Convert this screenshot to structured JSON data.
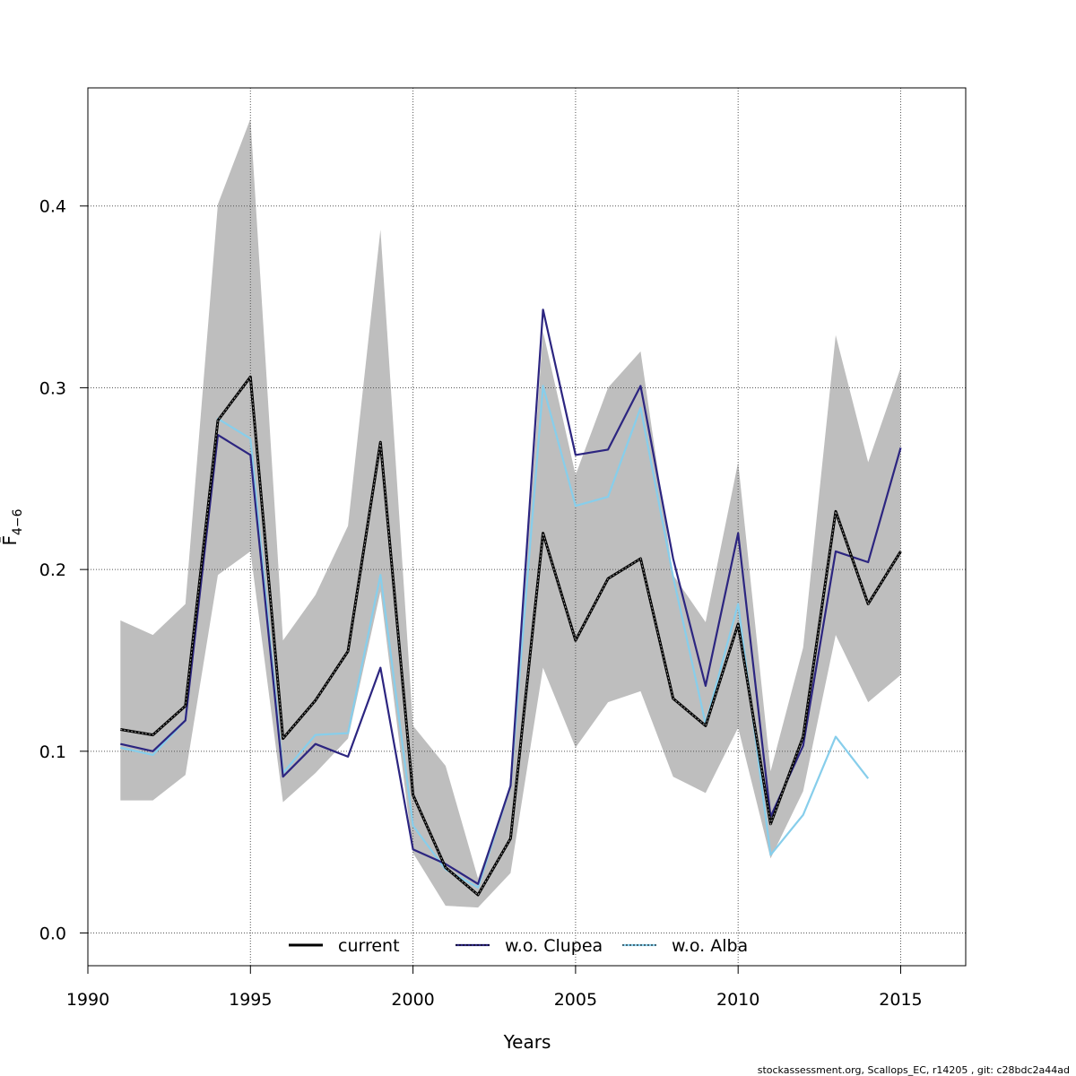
{
  "chart_data": {
    "type": "line",
    "title": "",
    "xlabel": "Years",
    "ylabel": "F̄",
    "ylabel_subscript": "4−6",
    "xlim": [
      1990,
      2017
    ],
    "ylim": [
      -0.018,
      0.465
    ],
    "x_ticks": [
      1990,
      1995,
      2000,
      2005,
      2010,
      2015
    ],
    "y_ticks": [
      0.0,
      0.1,
      0.2,
      0.3,
      0.4
    ],
    "y_tick_labels": [
      "0.0",
      "0.1",
      "0.2",
      "0.3",
      "0.4"
    ],
    "grid": true,
    "legend_position": "bottom",
    "x": [
      1991,
      1992,
      1993,
      1994,
      1995,
      1996,
      1997,
      1998,
      1999,
      2000,
      2001,
      2002,
      2003,
      2004,
      2005,
      2006,
      2007,
      2008,
      2009,
      2010,
      2011,
      2012,
      2013,
      2014,
      2015
    ],
    "band": {
      "color": "#bebebe",
      "lower": [
        0.073,
        0.073,
        0.087,
        0.197,
        0.21,
        0.072,
        0.088,
        0.107,
        0.188,
        0.044,
        0.015,
        0.014,
        0.033,
        0.146,
        0.102,
        0.127,
        0.133,
        0.086,
        0.077,
        0.113,
        0.041,
        0.078,
        0.164,
        0.127,
        0.142
      ],
      "upper": [
        0.172,
        0.164,
        0.181,
        0.401,
        0.448,
        0.161,
        0.186,
        0.224,
        0.387,
        0.114,
        0.092,
        0.03,
        0.08,
        0.331,
        0.252,
        0.3,
        0.32,
        0.197,
        0.171,
        0.259,
        0.089,
        0.157,
        0.329,
        0.259,
        0.311
      ]
    },
    "series": [
      {
        "name": "current",
        "color": "#000000",
        "dashed": true,
        "values": [
          0.112,
          0.109,
          0.125,
          0.282,
          0.306,
          0.107,
          0.128,
          0.155,
          0.27,
          0.076,
          0.036,
          0.021,
          0.052,
          0.22,
          0.161,
          0.195,
          0.206,
          0.129,
          0.114,
          0.17,
          0.06,
          0.108,
          0.232,
          0.181,
          0.21
        ]
      },
      {
        "name": "w.o. Clupea",
        "color": "#2c2580",
        "dashed": false,
        "values": [
          0.104,
          0.1,
          0.117,
          0.274,
          0.263,
          0.086,
          0.104,
          0.097,
          0.146,
          0.046,
          0.038,
          0.027,
          0.081,
          0.343,
          0.263,
          0.266,
          0.301,
          0.206,
          0.136,
          0.22,
          0.064,
          0.103,
          0.21,
          0.204,
          0.267
        ]
      },
      {
        "name": "w.o. Alba",
        "color": "#87ceeb",
        "dashed": false,
        "values": [
          0.102,
          0.098,
          0.117,
          0.283,
          0.272,
          0.088,
          0.109,
          0.11,
          0.197,
          0.059,
          0.035,
          0.025,
          0.081,
          0.301,
          0.235,
          0.24,
          0.289,
          0.196,
          0.115,
          0.181,
          0.043,
          0.065,
          0.108,
          0.085,
          null
        ]
      }
    ]
  },
  "footer": "stockassessment.org, Scallops_EC, r14205 , git: c28bdc2a44ad"
}
